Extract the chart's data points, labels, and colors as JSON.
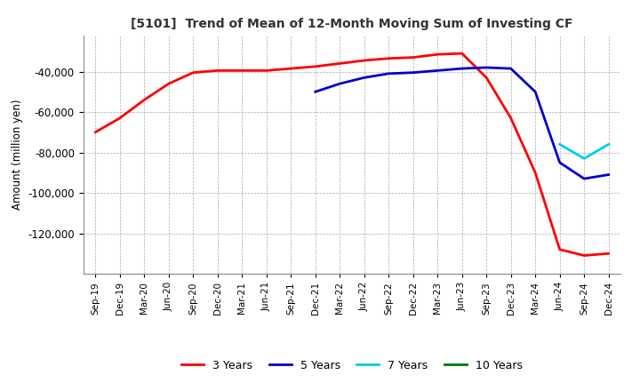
{
  "title": "[5101]  Trend of Mean of 12-Month Moving Sum of Investing CF",
  "ylabel": "Amount (million yen)",
  "line_colors": {
    "3yr": "#FF0000",
    "5yr": "#0000CC",
    "7yr": "#00CCEE",
    "10yr": "#007700"
  },
  "legend_labels": [
    "3 Years",
    "5 Years",
    "7 Years",
    "10 Years"
  ],
  "x_labels": [
    "Sep-19",
    "Dec-19",
    "Mar-20",
    "Jun-20",
    "Sep-20",
    "Dec-20",
    "Mar-21",
    "Jun-21",
    "Sep-21",
    "Dec-21",
    "Mar-22",
    "Jun-22",
    "Sep-22",
    "Dec-22",
    "Mar-23",
    "Jun-23",
    "Sep-23",
    "Dec-23",
    "Mar-24",
    "Jun-24",
    "Sep-24",
    "Dec-24"
  ],
  "ylim": [
    -140000,
    -22000
  ],
  "yticks": [
    -40000,
    -60000,
    -80000,
    -100000,
    -120000
  ],
  "series_3yr": [
    -70000,
    -63000,
    -54000,
    -46000,
    -40500,
    -39500,
    -39500,
    -39500,
    -38500,
    -37500,
    -36000,
    -34500,
    -33500,
    -33000,
    -31500,
    -31000,
    -43000,
    -63000,
    -90000,
    -128000,
    -131000,
    -130000
  ],
  "series_5yr": [
    null,
    null,
    null,
    null,
    null,
    null,
    null,
    null,
    null,
    -50000,
    -46000,
    -43000,
    -41000,
    -40500,
    -39500,
    -38500,
    -38000,
    -38500,
    -50000,
    -85000,
    -93000,
    -91000
  ],
  "series_7yr": [
    null,
    null,
    null,
    null,
    null,
    null,
    null,
    null,
    null,
    null,
    null,
    null,
    null,
    null,
    null,
    null,
    null,
    null,
    null,
    -76000,
    -83000,
    -76000
  ],
  "series_10yr": [
    null,
    null,
    null,
    null,
    null,
    null,
    null,
    null,
    null,
    null,
    null,
    null,
    null,
    null,
    null,
    null,
    null,
    null,
    null,
    null,
    null,
    null
  ],
  "background_color": "#FFFFFF",
  "grid_color": "#AAAAAA"
}
